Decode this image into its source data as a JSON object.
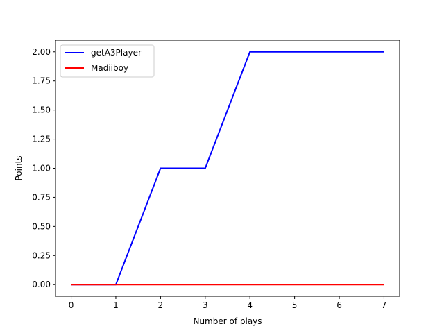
{
  "chart_data": {
    "type": "line",
    "title": "",
    "xlabel": "Number of plays",
    "ylabel": "Points",
    "x": [
      0,
      1,
      2,
      3,
      4,
      5,
      6,
      7
    ],
    "xlim": [
      -0.35,
      7.35
    ],
    "ylim": [
      -0.1,
      2.1
    ],
    "xticks": [
      0,
      1,
      2,
      3,
      4,
      5,
      6,
      7
    ],
    "xtick_labels": [
      "0",
      "1",
      "2",
      "3",
      "4",
      "5",
      "6",
      "7"
    ],
    "yticks": [
      0,
      0.25,
      0.5,
      0.75,
      1.0,
      1.25,
      1.5,
      1.75,
      2.0
    ],
    "ytick_labels": [
      "0.00",
      "0.25",
      "0.50",
      "0.75",
      "1.00",
      "1.25",
      "1.50",
      "1.75",
      "2.00"
    ],
    "grid": false,
    "legend_position": "top-left",
    "series": [
      {
        "name": "getA3Player",
        "color": "#0000ff",
        "values": [
          0,
          0,
          1,
          1,
          2,
          2,
          2,
          2
        ]
      },
      {
        "name": "Madiiboy",
        "color": "#ff0000",
        "values": [
          0,
          0,
          0,
          0,
          0,
          0,
          0,
          0
        ]
      }
    ]
  }
}
